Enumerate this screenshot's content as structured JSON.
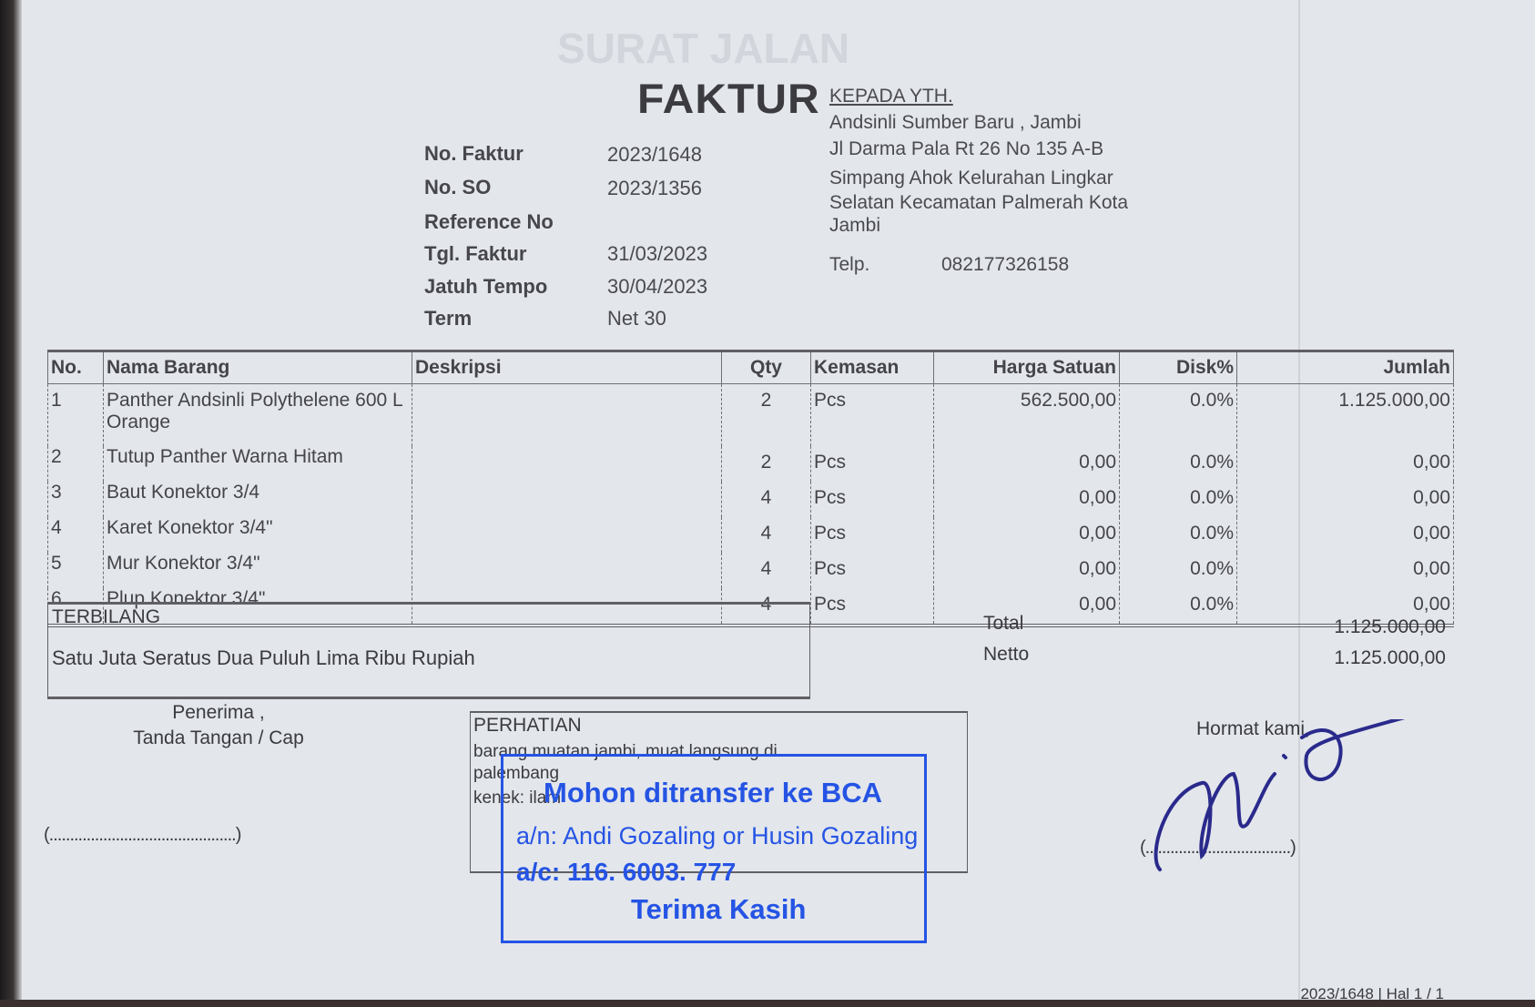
{
  "ghost_title": "SURAT JALAN",
  "title": "FAKTUR",
  "meta": [
    {
      "label": "No. Faktur",
      "value": "2023/1648"
    },
    {
      "label": "No. SO",
      "value": "2023/1356"
    },
    {
      "label": "Reference No",
      "value": ""
    },
    {
      "label": "Tgl. Faktur",
      "value": "31/03/2023"
    },
    {
      "label": "Jatuh Tempo",
      "value": "30/04/2023"
    },
    {
      "label": "Term",
      "value": "Net 30"
    }
  ],
  "recipient": {
    "heading": "KEPADA YTH.",
    "lines": [
      "Andsinli Sumber Baru , Jambi",
      "Jl Darma Pala Rt 26 No 135 A-B",
      "Simpang Ahok Kelurahan Lingkar",
      "Selatan Kecamatan Palmerah Kota",
      "Jambi"
    ],
    "phone_label": "Telp.",
    "phone": "082177326158"
  },
  "table": {
    "headers": [
      "No.",
      "Nama Barang",
      "Deskripsi",
      "Qty",
      "Kemasan",
      "Harga Satuan",
      "Disk%",
      "Jumlah"
    ],
    "rows": [
      {
        "no": "1",
        "name": "Panther Andsinli Polythelene 600 L Orange",
        "desc": "",
        "qty": "2",
        "unit": "Pcs",
        "price": "562.500,00",
        "disc": "0.0%",
        "total": "1.125.000,00"
      },
      {
        "no": "2",
        "name": "Tutup Panther Warna Hitam",
        "desc": "",
        "qty": "2",
        "unit": "Pcs",
        "price": "0,00",
        "disc": "0.0%",
        "total": "0,00"
      },
      {
        "no": "3",
        "name": "Baut Konektor 3/4",
        "desc": "",
        "qty": "4",
        "unit": "Pcs",
        "price": "0,00",
        "disc": "0.0%",
        "total": "0,00"
      },
      {
        "no": "4",
        "name": "Karet Konektor 3/4\"",
        "desc": "",
        "qty": "4",
        "unit": "Pcs",
        "price": "0,00",
        "disc": "0.0%",
        "total": "0,00"
      },
      {
        "no": "5",
        "name": "Mur Konektor 3/4\"",
        "desc": "",
        "qty": "4",
        "unit": "Pcs",
        "price": "0,00",
        "disc": "0.0%",
        "total": "0,00"
      },
      {
        "no": "6",
        "name": "Plup Konektor 3/4\"",
        "desc": "",
        "qty": "4",
        "unit": "Pcs",
        "price": "0,00",
        "disc": "0.0%",
        "total": "0,00"
      }
    ]
  },
  "terbilang": {
    "label": "TERBILANG",
    "text": "Satu Juta Seratus Dua Puluh Lima Ribu Rupiah"
  },
  "totals": {
    "total_label": "Total",
    "total": "1.125.000,00",
    "netto_label": "Netto",
    "netto": "1.125.000,00"
  },
  "receiver": {
    "line1": "Penerima ,",
    "line2": "Tanda Tangan / Cap",
    "blank": "(.............................................)"
  },
  "notice": {
    "heading": "PERHATIAN",
    "lines": [
      "barang muatan jambi, muat langsung di",
      "palembang",
      "kenek: ilam"
    ]
  },
  "stamp": {
    "line1": "Mohon ditransfer ke BCA",
    "line2": "a/n: Andi Gozaling or Husin Gozaling",
    "line3": "a/c: 116. 6003. 777",
    "line4": "Terima Kasih",
    "color": "#2554e4"
  },
  "sender": {
    "greeting": "Hormat kami,",
    "blank": "(...................................)"
  },
  "footer": "2023/1648 | Hal 1 / 1"
}
